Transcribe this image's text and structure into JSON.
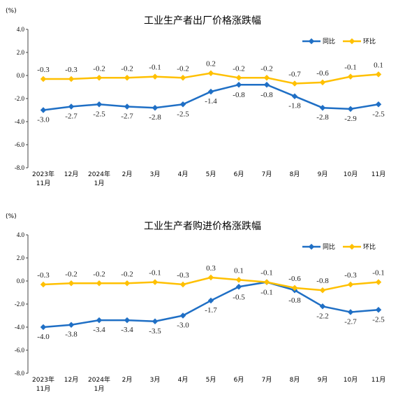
{
  "chart_data": [
    {
      "type": "line",
      "title": "工业生产者出厂价格涨跌幅",
      "unit": "(%)",
      "ylim": [
        -8.0,
        4.0
      ],
      "yticks": [
        "4.0",
        "2.0",
        "0.0",
        "-2.0",
        "-4.0",
        "-6.0",
        "-8.0"
      ],
      "ytick_values": [
        4,
        2,
        0,
        -2,
        -4,
        -6,
        -8
      ],
      "categories": [
        [
          "2023年",
          "11月"
        ],
        [
          "12月"
        ],
        [
          "2024年",
          "1月"
        ],
        [
          "2月"
        ],
        [
          "3月"
        ],
        [
          "4月"
        ],
        [
          "5月"
        ],
        [
          "6月"
        ],
        [
          "7月"
        ],
        [
          "8月"
        ],
        [
          "9月"
        ],
        [
          "10月"
        ],
        [
          "11月"
        ]
      ],
      "legend_position": "top-right",
      "series": [
        {
          "name": "同比",
          "color": "#1F6FC5",
          "values": [
            -3.0,
            -2.7,
            -2.5,
            -2.7,
            -2.8,
            -2.5,
            -1.4,
            -0.8,
            -0.8,
            -1.8,
            -2.8,
            -2.9,
            -2.5
          ],
          "labels": [
            "-3.0",
            "-2.7",
            "-2.5",
            "-2.7",
            "-2.8",
            "-2.5",
            "-1.4",
            "-0.8",
            "-0.8",
            "-1.8",
            "-2.8",
            "-2.9",
            "-2.5"
          ]
        },
        {
          "name": "环比",
          "color": "#FFC000",
          "values": [
            -0.3,
            -0.3,
            -0.2,
            -0.2,
            -0.1,
            -0.2,
            0.2,
            -0.2,
            -0.2,
            -0.7,
            -0.6,
            -0.1,
            0.1
          ],
          "labels": [
            "-0.3",
            "-0.3",
            "-0.2",
            "-0.2",
            "-0.1",
            "-0.2",
            "0.2",
            "-0.2",
            "-0.2",
            "-0.7",
            "-0.6",
            "-0.1",
            "0.1"
          ]
        }
      ]
    },
    {
      "type": "line",
      "title": "工业生产者购进价格涨跌幅",
      "unit": "(%)",
      "ylim": [
        -8.0,
        4.0
      ],
      "yticks": [
        "4.0",
        "2.0",
        "0.0",
        "-2.0",
        "-4.0",
        "-6.0",
        "-8.0"
      ],
      "ytick_values": [
        4,
        2,
        0,
        -2,
        -4,
        -6,
        -8
      ],
      "categories": [
        [
          "2023年",
          "11月"
        ],
        [
          "12月"
        ],
        [
          "2024年",
          "1月"
        ],
        [
          "2月"
        ],
        [
          "3月"
        ],
        [
          "4月"
        ],
        [
          "5月"
        ],
        [
          "6月"
        ],
        [
          "7月"
        ],
        [
          "8月"
        ],
        [
          "9月"
        ],
        [
          "10月"
        ],
        [
          "11月"
        ]
      ],
      "legend_position": "top-right",
      "series": [
        {
          "name": "同比",
          "color": "#1F6FC5",
          "values": [
            -4.0,
            -3.8,
            -3.4,
            -3.4,
            -3.5,
            -3.0,
            -1.7,
            -0.5,
            -0.1,
            -0.8,
            -2.2,
            -2.7,
            -2.5
          ],
          "labels": [
            "-4.0",
            "-3.8",
            "-3.4",
            "-3.4",
            "-3.5",
            "-3.0",
            "-1.7",
            "-0.5",
            "-0.1",
            "-0.8",
            "-2.2",
            "-2.7",
            "-2.5"
          ]
        },
        {
          "name": "环比",
          "color": "#FFC000",
          "values": [
            -0.3,
            -0.2,
            -0.2,
            -0.2,
            -0.1,
            -0.3,
            0.3,
            0.1,
            -0.1,
            -0.6,
            -0.8,
            -0.3,
            -0.1
          ],
          "labels": [
            "-0.3",
            "-0.2",
            "-0.2",
            "-0.2",
            "-0.1",
            "-0.3",
            "0.3",
            "0.1",
            "-0.1",
            "-0.6",
            "-0.8",
            "-0.3",
            "-0.1"
          ]
        }
      ]
    }
  ]
}
